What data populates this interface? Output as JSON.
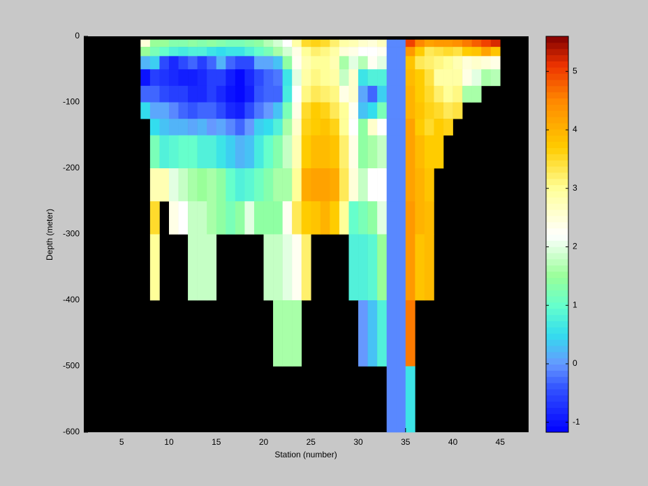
{
  "chart_data": {
    "type": "heatmap",
    "x_label": "Station (number)",
    "y_label": "Depth (meter)",
    "x": [
      7,
      8,
      9,
      10,
      11,
      12,
      13,
      14,
      15,
      16,
      17,
      18,
      19,
      20,
      21,
      22,
      23,
      24,
      25,
      26,
      27,
      28,
      29,
      30,
      31,
      32,
      33,
      34,
      35,
      36,
      37,
      38,
      39,
      40,
      41,
      42,
      43,
      44,
      45
    ],
    "y": [
      -5,
      -16,
      -30,
      -50,
      -75,
      -100,
      -125,
      -150,
      -200,
      -250,
      -300,
      -400,
      -500,
      -600
    ],
    "values": [
      [
        2.5,
        1.5,
        0.2,
        -1.0,
        -0.3,
        0.5,
        null,
        null,
        null,
        null,
        null,
        null,
        null
      ],
      [
        1.5,
        1.2,
        0.4,
        -0.6,
        -0.3,
        0.1,
        0.5,
        1.2,
        2.8,
        3.5,
        3.0,
        null,
        null
      ],
      [
        1.5,
        1.0,
        -0.5,
        -0.7,
        -0.5,
        0.1,
        0.3,
        0.8,
        2.8,
        null,
        null,
        null,
        null
      ],
      [
        1.3,
        0.8,
        -0.8,
        -0.8,
        -0.6,
        -0.1,
        0.2,
        0.9,
        2.0,
        2.4,
        null,
        null,
        null
      ],
      [
        1.3,
        0.7,
        -0.5,
        -0.9,
        -0.6,
        -0.3,
        0.2,
        1.0,
        1.8,
        2.2,
        null,
        null,
        null
      ],
      [
        1.4,
        0.8,
        -0.3,
        -0.9,
        -0.8,
        -0.4,
        0.1,
        1.0,
        1.6,
        1.8,
        1.8,
        null,
        null
      ],
      [
        1.3,
        0.8,
        -0.6,
        -0.8,
        -0.8,
        -0.3,
        0.2,
        0.8,
        1.5,
        1.8,
        1.8,
        null,
        null
      ],
      [
        1.4,
        0.6,
        -0.3,
        -0.6,
        -0.6,
        -0.3,
        0.0,
        0.8,
        1.6,
        1.6,
        1.8,
        null,
        null
      ],
      [
        1.3,
        0.5,
        0.2,
        -0.6,
        -0.8,
        -0.5,
        0.1,
        0.6,
        1.4,
        1.4,
        null,
        null,
        null
      ],
      [
        1.2,
        0.6,
        -0.3,
        -0.9,
        -1.0,
        -0.8,
        -0.1,
        0.4,
        1.0,
        1.2,
        null,
        null,
        null
      ],
      [
        1.2,
        0.6,
        -0.5,
        -1.1,
        -1.1,
        -0.9,
        -0.3,
        0.2,
        0.8,
        1.4,
        null,
        null,
        null
      ],
      [
        1.3,
        0.8,
        -0.5,
        -0.8,
        -0.9,
        -0.5,
        0.0,
        0.3,
        0.9,
        2.0,
        null,
        null,
        null
      ],
      [
        1.4,
        1.0,
        0.1,
        -0.5,
        -0.4,
        -0.2,
        0.4,
        0.7,
        1.1,
        1.4,
        null,
        null,
        null
      ],
      [
        1.7,
        1.2,
        0.1,
        -0.3,
        -0.3,
        0.0,
        0.5,
        1.0,
        1.3,
        1.4,
        1.8,
        null,
        null
      ],
      [
        1.9,
        1.6,
        0.3,
        -0.2,
        -0.3,
        0.3,
        0.8,
        1.3,
        1.6,
        1.4,
        1.8,
        1.6,
        null
      ],
      [
        2.2,
        1.9,
        1.4,
        0.6,
        0.7,
        1.2,
        1.6,
        1.8,
        1.6,
        2.3,
        2.0,
        1.6,
        null
      ],
      [
        2.9,
        2.4,
        2.3,
        2.0,
        2.2,
        2.4,
        2.6,
        2.8,
        3.0,
        3.3,
        2.3,
        1.6,
        null
      ],
      [
        3.5,
        3.0,
        2.8,
        2.9,
        3.1,
        3.5,
        3.6,
        3.7,
        4.1,
        3.7,
        3.2,
        null,
        null
      ],
      [
        3.6,
        3.2,
        3.0,
        3.1,
        3.3,
        3.7,
        3.7,
        3.9,
        4.2,
        3.8,
        null,
        null,
        null
      ],
      [
        3.5,
        3.1,
        3.0,
        3.0,
        3.2,
        3.6,
        3.8,
        3.9,
        4.2,
        4.0,
        null,
        null,
        null
      ],
      [
        3.2,
        2.9,
        2.8,
        2.9,
        3.1,
        3.3,
        3.6,
        3.8,
        4.1,
        3.7,
        null,
        null,
        null
      ],
      [
        2.9,
        2.5,
        1.6,
        1.8,
        2.4,
        3.0,
        3.0,
        3.2,
        3.3,
        3.0,
        null,
        null,
        null
      ],
      [
        2.8,
        2.4,
        2.0,
        2.6,
        2.6,
        2.3,
        2.2,
        2.4,
        2.5,
        1.0,
        0.8,
        null,
        null
      ],
      [
        2.6,
        2.2,
        1.7,
        0.6,
        0.1,
        0.3,
        1.4,
        1.4,
        1.8,
        1.2,
        0.8,
        0.0,
        null
      ],
      [
        2.5,
        2.2,
        2.3,
        0.8,
        -0.3,
        0.5,
        2.6,
        1.6,
        2.2,
        1.4,
        0.9,
        0.3,
        null
      ],
      [
        2.7,
        2.3,
        2.0,
        0.8,
        0.4,
        1.2,
        2.2,
        1.8,
        2.2,
        2.0,
        1.5,
        0.8,
        null
      ],
      [
        -0.1,
        -0.1,
        -0.1,
        -0.1,
        -0.1,
        -0.1,
        -0.1,
        -0.1,
        -0.1,
        -0.1,
        -0.1,
        -0.1,
        -0.1
      ],
      [
        -0.1,
        -0.1,
        -0.1,
        -0.1,
        -0.1,
        -0.1,
        -0.1,
        -0.1,
        -0.1,
        -0.1,
        -0.1,
        -0.1,
        -0.1
      ],
      [
        5.0,
        4.3,
        3.8,
        3.9,
        4.0,
        4.0,
        4.2,
        4.2,
        4.2,
        4.3,
        4.3,
        4.6,
        0.6
      ],
      [
        4.5,
        3.7,
        3.3,
        3.7,
        3.7,
        3.8,
        3.7,
        3.9,
        4.0,
        4.0,
        3.8,
        null,
        null
      ],
      [
        4.2,
        3.3,
        3.2,
        3.4,
        3.5,
        3.6,
        3.5,
        3.7,
        3.8,
        3.9,
        3.9,
        null,
        null
      ],
      [
        4.3,
        3.4,
        3.1,
        2.9,
        3.2,
        3.5,
        3.7,
        3.7,
        null,
        null,
        null,
        null,
        null
      ],
      [
        4.3,
        3.5,
        3.0,
        2.9,
        3.0,
        3.3,
        3.6,
        null,
        null,
        null,
        null,
        null,
        null
      ],
      [
        4.4,
        3.4,
        2.8,
        2.9,
        3.1,
        3.4,
        null,
        null,
        null,
        null,
        null,
        null,
        null
      ],
      [
        4.6,
        3.7,
        2.5,
        2.4,
        1.6,
        null,
        null,
        null,
        null,
        null,
        null,
        null,
        null
      ],
      [
        4.8,
        3.8,
        2.6,
        2.0,
        1.6,
        null,
        null,
        null,
        null,
        null,
        null,
        null,
        null
      ],
      [
        5.0,
        4.2,
        2.5,
        1.6,
        null,
        null,
        null,
        null,
        null,
        null,
        null,
        null,
        null
      ],
      [
        5.2,
        3.8,
        2.4,
        1.7,
        null,
        null,
        null,
        null,
        null,
        null,
        null,
        null,
        null
      ]
    ],
    "xlim": [
      1,
      48
    ],
    "xticks": [
      5,
      10,
      15,
      20,
      25,
      30,
      35,
      40,
      45
    ],
    "ylim": [
      -600,
      0
    ],
    "yticks": [
      -600,
      -500,
      -400,
      -300,
      -200,
      -100,
      0
    ],
    "clim": [
      -1.17,
      5.6
    ],
    "cticks": [
      -1,
      0,
      1,
      2,
      3,
      4,
      5
    ],
    "background": "#000000",
    "colorscale": [
      [
        -1.17,
        "#0000ff"
      ],
      [
        -0.4,
        "#3355ff"
      ],
      [
        0,
        "#6699ff"
      ],
      [
        0.5,
        "#33ddee"
      ],
      [
        1,
        "#66ffcc"
      ],
      [
        1.5,
        "#99ff99"
      ],
      [
        2.2,
        "#ffffff"
      ],
      [
        3,
        "#ffff99"
      ],
      [
        3.7,
        "#ffcc00"
      ],
      [
        4.5,
        "#ff8800"
      ],
      [
        5.1,
        "#ee3300"
      ],
      [
        5.6,
        "#800000"
      ]
    ]
  }
}
